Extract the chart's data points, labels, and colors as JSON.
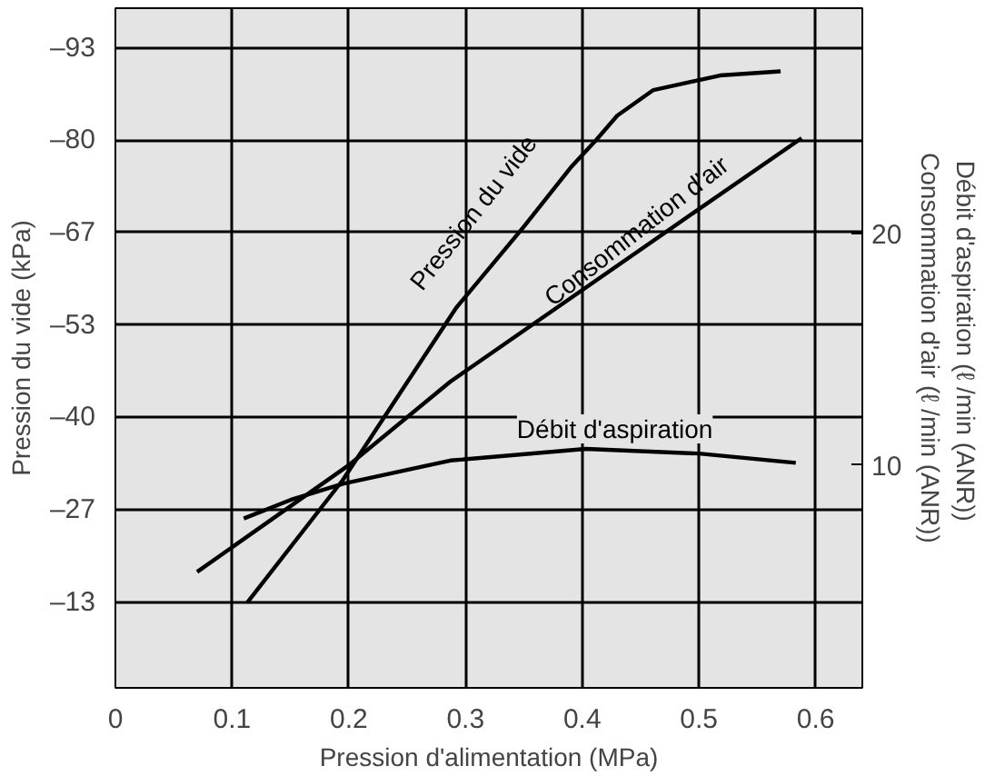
{
  "chart_data": {
    "type": "line",
    "xlabel": "Pression d'alimentation (MPa)",
    "ylabel": "Pression du vide (kPa)",
    "y2label": "Débit d'aspiration   (ℓ /min (ANR))\nConsommation d'air (ℓ /min (ANR))",
    "xlim": [
      0,
      0.64
    ],
    "xticks": [
      0,
      0.1,
      0.2,
      0.3,
      0.4,
      0.5,
      0.6
    ],
    "ylim": [
      -1,
      -99
    ],
    "yticks": [
      {
        "value": -93.3,
        "label": "–93"
      },
      {
        "value": -80,
        "label": "–80"
      },
      {
        "value": -66.7,
        "label": "–67"
      },
      {
        "value": -53.3,
        "label": "–53"
      },
      {
        "value": -40,
        "label": "–40"
      },
      {
        "value": -26.7,
        "label": "–27"
      },
      {
        "value": -13.3,
        "label": "–13"
      }
    ],
    "y2lim": [
      0.4,
      29.7
    ],
    "y2ticks": [
      10,
      20
    ],
    "grid": true,
    "line_style": "solid",
    "marker": "none",
    "series": [
      {
        "name": "Pression du vide",
        "color": "#000000",
        "x": [
          0.113,
          0.195,
          0.292,
          0.35,
          0.39,
          0.412,
          0.43,
          0.461,
          0.518,
          0.57
        ],
        "values": [
          -13.3,
          -31.0,
          -55.8,
          -67.5,
          -76,
          -80,
          -83.5,
          -87.2,
          -89.3,
          -89.9
        ]
      },
      {
        "name": "Consommation d'air",
        "color": "#000000",
        "axis": "y2",
        "x": [
          0.07,
          0.2,
          0.287,
          0.496,
          0.588
        ],
        "values": [
          5.4,
          10.0,
          13.6,
          20.9,
          24.1
        ]
      },
      {
        "name": "Débit d'aspiration",
        "color": "#000000",
        "axis": "y2",
        "x": [
          0.11,
          0.15,
          0.195,
          0.287,
          0.403,
          0.5,
          0.583
        ],
        "values": [
          7.7,
          8.5,
          9.2,
          10.2,
          10.7,
          10.5,
          10.1
        ]
      }
    ]
  }
}
